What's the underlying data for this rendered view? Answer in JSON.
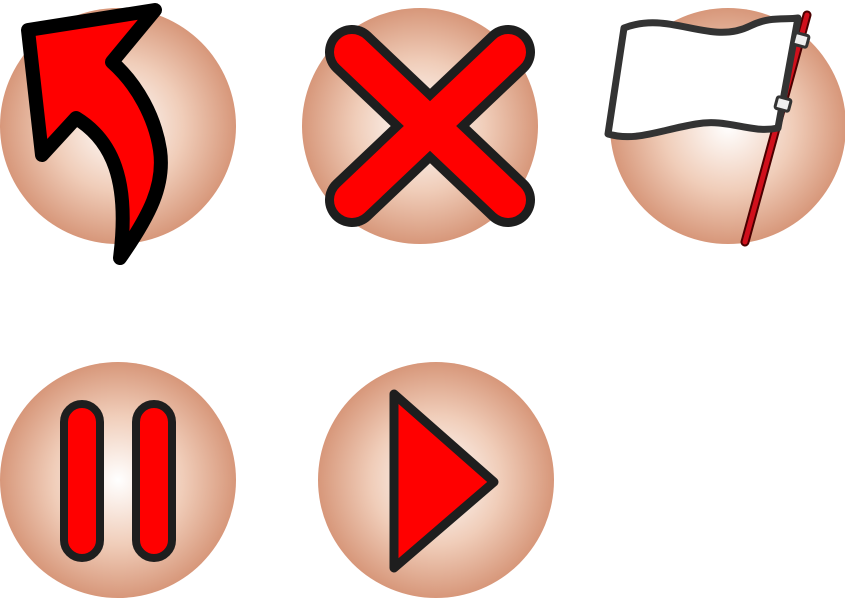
{
  "icons": [
    {
      "name": "undo-arrow-icon"
    },
    {
      "name": "close-x-icon"
    },
    {
      "name": "white-flag-icon"
    },
    {
      "name": "pause-icon"
    },
    {
      "name": "play-icon"
    }
  ],
  "colors": {
    "circle_center": "#ffffff",
    "circle_edge": "#d7977a",
    "symbol_fill": "#ff0000",
    "symbol_outline": "#1e1e1e",
    "flag_fill": "#ffffff",
    "flag_outline": "#333333",
    "pole": "#c1121c"
  }
}
